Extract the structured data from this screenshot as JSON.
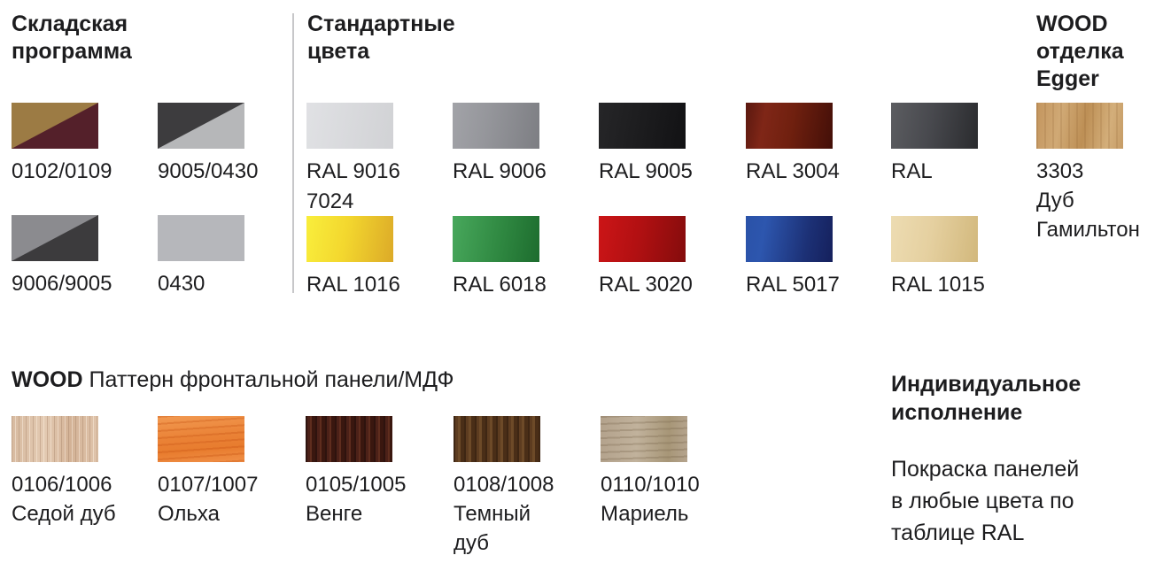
{
  "page": {
    "background": "#ffffff",
    "text_color": "#1d1d1f",
    "divider_color": "#c7c7c9"
  },
  "stock": {
    "title_lines": [
      "Складская",
      "программа"
    ],
    "items": [
      {
        "label_lines": [
          "0102/0109"
        ],
        "colors": [
          "#9c7b44",
          "#54202a"
        ],
        "bg": "linear-gradient(to bottom right, #9c7b44 49.7%, #54202a 50.3%)"
      },
      {
        "label_lines": [
          "9005/0430"
        ],
        "colors": [
          "#3d3c3e",
          "#b6b7b9"
        ],
        "bg": "linear-gradient(to bottom right, #3d3c3e 49.7%, #b6b7b9 50.3%)"
      },
      {
        "label_lines": [
          "9006/9005"
        ],
        "colors": [
          "#8b8b8f",
          "#3c3b3d"
        ],
        "bg": "linear-gradient(to bottom right, #8b8b8f 49.7%, #3c3b3d 50.3%)"
      },
      {
        "label_lines": [
          "0430"
        ],
        "colors": [
          "#b6b7bb"
        ],
        "bg": "#b6b7bb"
      }
    ]
  },
  "standard": {
    "title_lines": [
      "Стандартные",
      "цвета"
    ],
    "row1": [
      {
        "label_lines": [
          "RAL 9016",
          "7024"
        ],
        "colors": [
          "#e0e1e4",
          "#d1d2d5"
        ],
        "bg": "linear-gradient(100deg, #e0e1e4, #d1d2d5)"
      },
      {
        "label_lines": [
          "RAL 9006"
        ],
        "colors": [
          "#a2a3a8",
          "#7d7e83"
        ],
        "bg": "linear-gradient(100deg, #a2a3a8, #95969b 40%, #7d7e83)"
      },
      {
        "label_lines": [
          "RAL 9005"
        ],
        "colors": [
          "#232325",
          "#121214"
        ],
        "bg": "linear-gradient(100deg, #262628, #121214)"
      },
      {
        "label_lines": [
          "RAL 3004"
        ],
        "colors": [
          "#7f2617",
          "#49100a"
        ],
        "bg": "linear-gradient(100deg, #5a180f, #7f2617 22%, #70200f 52%, #430f08)"
      },
      {
        "label_lines": [
          "RAL"
        ],
        "colors": [
          "#565659",
          "#2c2c2f"
        ],
        "bg": "linear-gradient(100deg, #5c5d61, #48494e 45%, #2a2b2e)"
      }
    ],
    "row2": [
      {
        "label_lines": [
          "RAL 1016"
        ],
        "colors": [
          "#f9ee3c",
          "#dcaa28"
        ],
        "bg": "linear-gradient(100deg, #f9ee3c, #f3d72e 45%, #dcaa28)"
      },
      {
        "label_lines": [
          "RAL 6018"
        ],
        "colors": [
          "#48a85c",
          "#1d6c2e"
        ],
        "bg": "linear-gradient(100deg, #48a85c, #2f8841 55%, #1d6c2e)"
      },
      {
        "label_lines": [
          "RAL 3020"
        ],
        "colors": [
          "#cc1517",
          "#840c0c"
        ],
        "bg": "linear-gradient(100deg, #cc1517, #b21012 45%, #840c0c)"
      },
      {
        "label_lines": [
          "RAL 5017"
        ],
        "colors": [
          "#2c55ae",
          "#15205c"
        ],
        "bg": "linear-gradient(100deg, #2a52a8, #2d56ae 22%, #1c3075 70%, #15205c)"
      },
      {
        "label_lines": [
          "RAL 1015"
        ],
        "colors": [
          "#eddcb2",
          "#d2b87c"
        ],
        "bg": "linear-gradient(100deg, #eddcb2, #e5d0a0 45%, #d2b87c)"
      }
    ]
  },
  "egger": {
    "title_lines": [
      "WOOD",
      "отделка",
      "Egger"
    ],
    "item": {
      "label_lines": [
        "3303",
        "Дуб",
        "Гамильтон"
      ],
      "colors": [
        "#c69c66"
      ],
      "bg": "repeating-linear-gradient(90deg, rgba(139,94,47,0.18) 0 2px, rgba(139,94,47,0) 2px 9px), linear-gradient(100deg, #c3955e 0%, #d0a975 28%, #bd8f55 55%, #d3ae7a 82%, #c69c66 100%)"
    }
  },
  "wood_pattern": {
    "title_bold": "WOOD",
    "title_rest": " Паттерн фронтальной панели/МДФ",
    "items": [
      {
        "label_lines": [
          "0106/1006",
          "Седой дуб"
        ],
        "colors": [
          "#dcc0a8"
        ],
        "bg": "repeating-linear-gradient(90deg, rgba(146,108,82,0.3) 0 1px, rgba(146,108,82,0) 1px 4px, rgba(255,243,230,0.45) 4px 5px, rgba(255,243,230,0) 5px 8px), linear-gradient(90deg, #d7baa0, #e3cab2 38%, #d3b296 68%, #e0c5ac)"
      },
      {
        "label_lines": [
          "0107/1007",
          "Ольха"
        ],
        "colors": [
          "#ea8236"
        ],
        "bg": "repeating-linear-gradient(176deg, rgba(200,85,20,0.35) 0 2px, rgba(200,85,20,0) 2px 8px), linear-gradient(175deg, #f29a52, #ea8236 45%, #e87c2e 70%, #f09048)"
      },
      {
        "label_lines": [
          "0105/1005",
          "Венге"
        ],
        "colors": [
          "#47211b"
        ],
        "bg": "repeating-linear-gradient(90deg, #2e130e 0 2px, #4c2118 2px 5px, #5f2d1e 5px 7px, #3a170f 7px 11px)"
      },
      {
        "label_lines": [
          "0108/1008",
          "Темный",
          "дуб"
        ],
        "colors": [
          "#5d3c20"
        ],
        "bg": "repeating-linear-gradient(90deg, #3e2613 0 2px, #5d3c20 2px 5px, #6d4a28 5px 8px, #4a2e17 8px 12px)"
      },
      {
        "label_lines": [
          "0110/1010",
          "Мариель"
        ],
        "colors": [
          "#b3a28c"
        ],
        "bg": "repeating-linear-gradient(178deg, rgba(118,99,74,0.3) 0 2px, rgba(118,99,74,0) 2px 8px), linear-gradient(92deg, #b3a28c, #c1b29c 42%, #a79677 78%, #b5a48e)"
      }
    ]
  },
  "custom": {
    "title_lines": [
      "Индивидуальное",
      "исполнение"
    ],
    "body_lines": [
      "Покраска панелей",
      "в любые цвета по",
      "таблице RAL"
    ]
  }
}
